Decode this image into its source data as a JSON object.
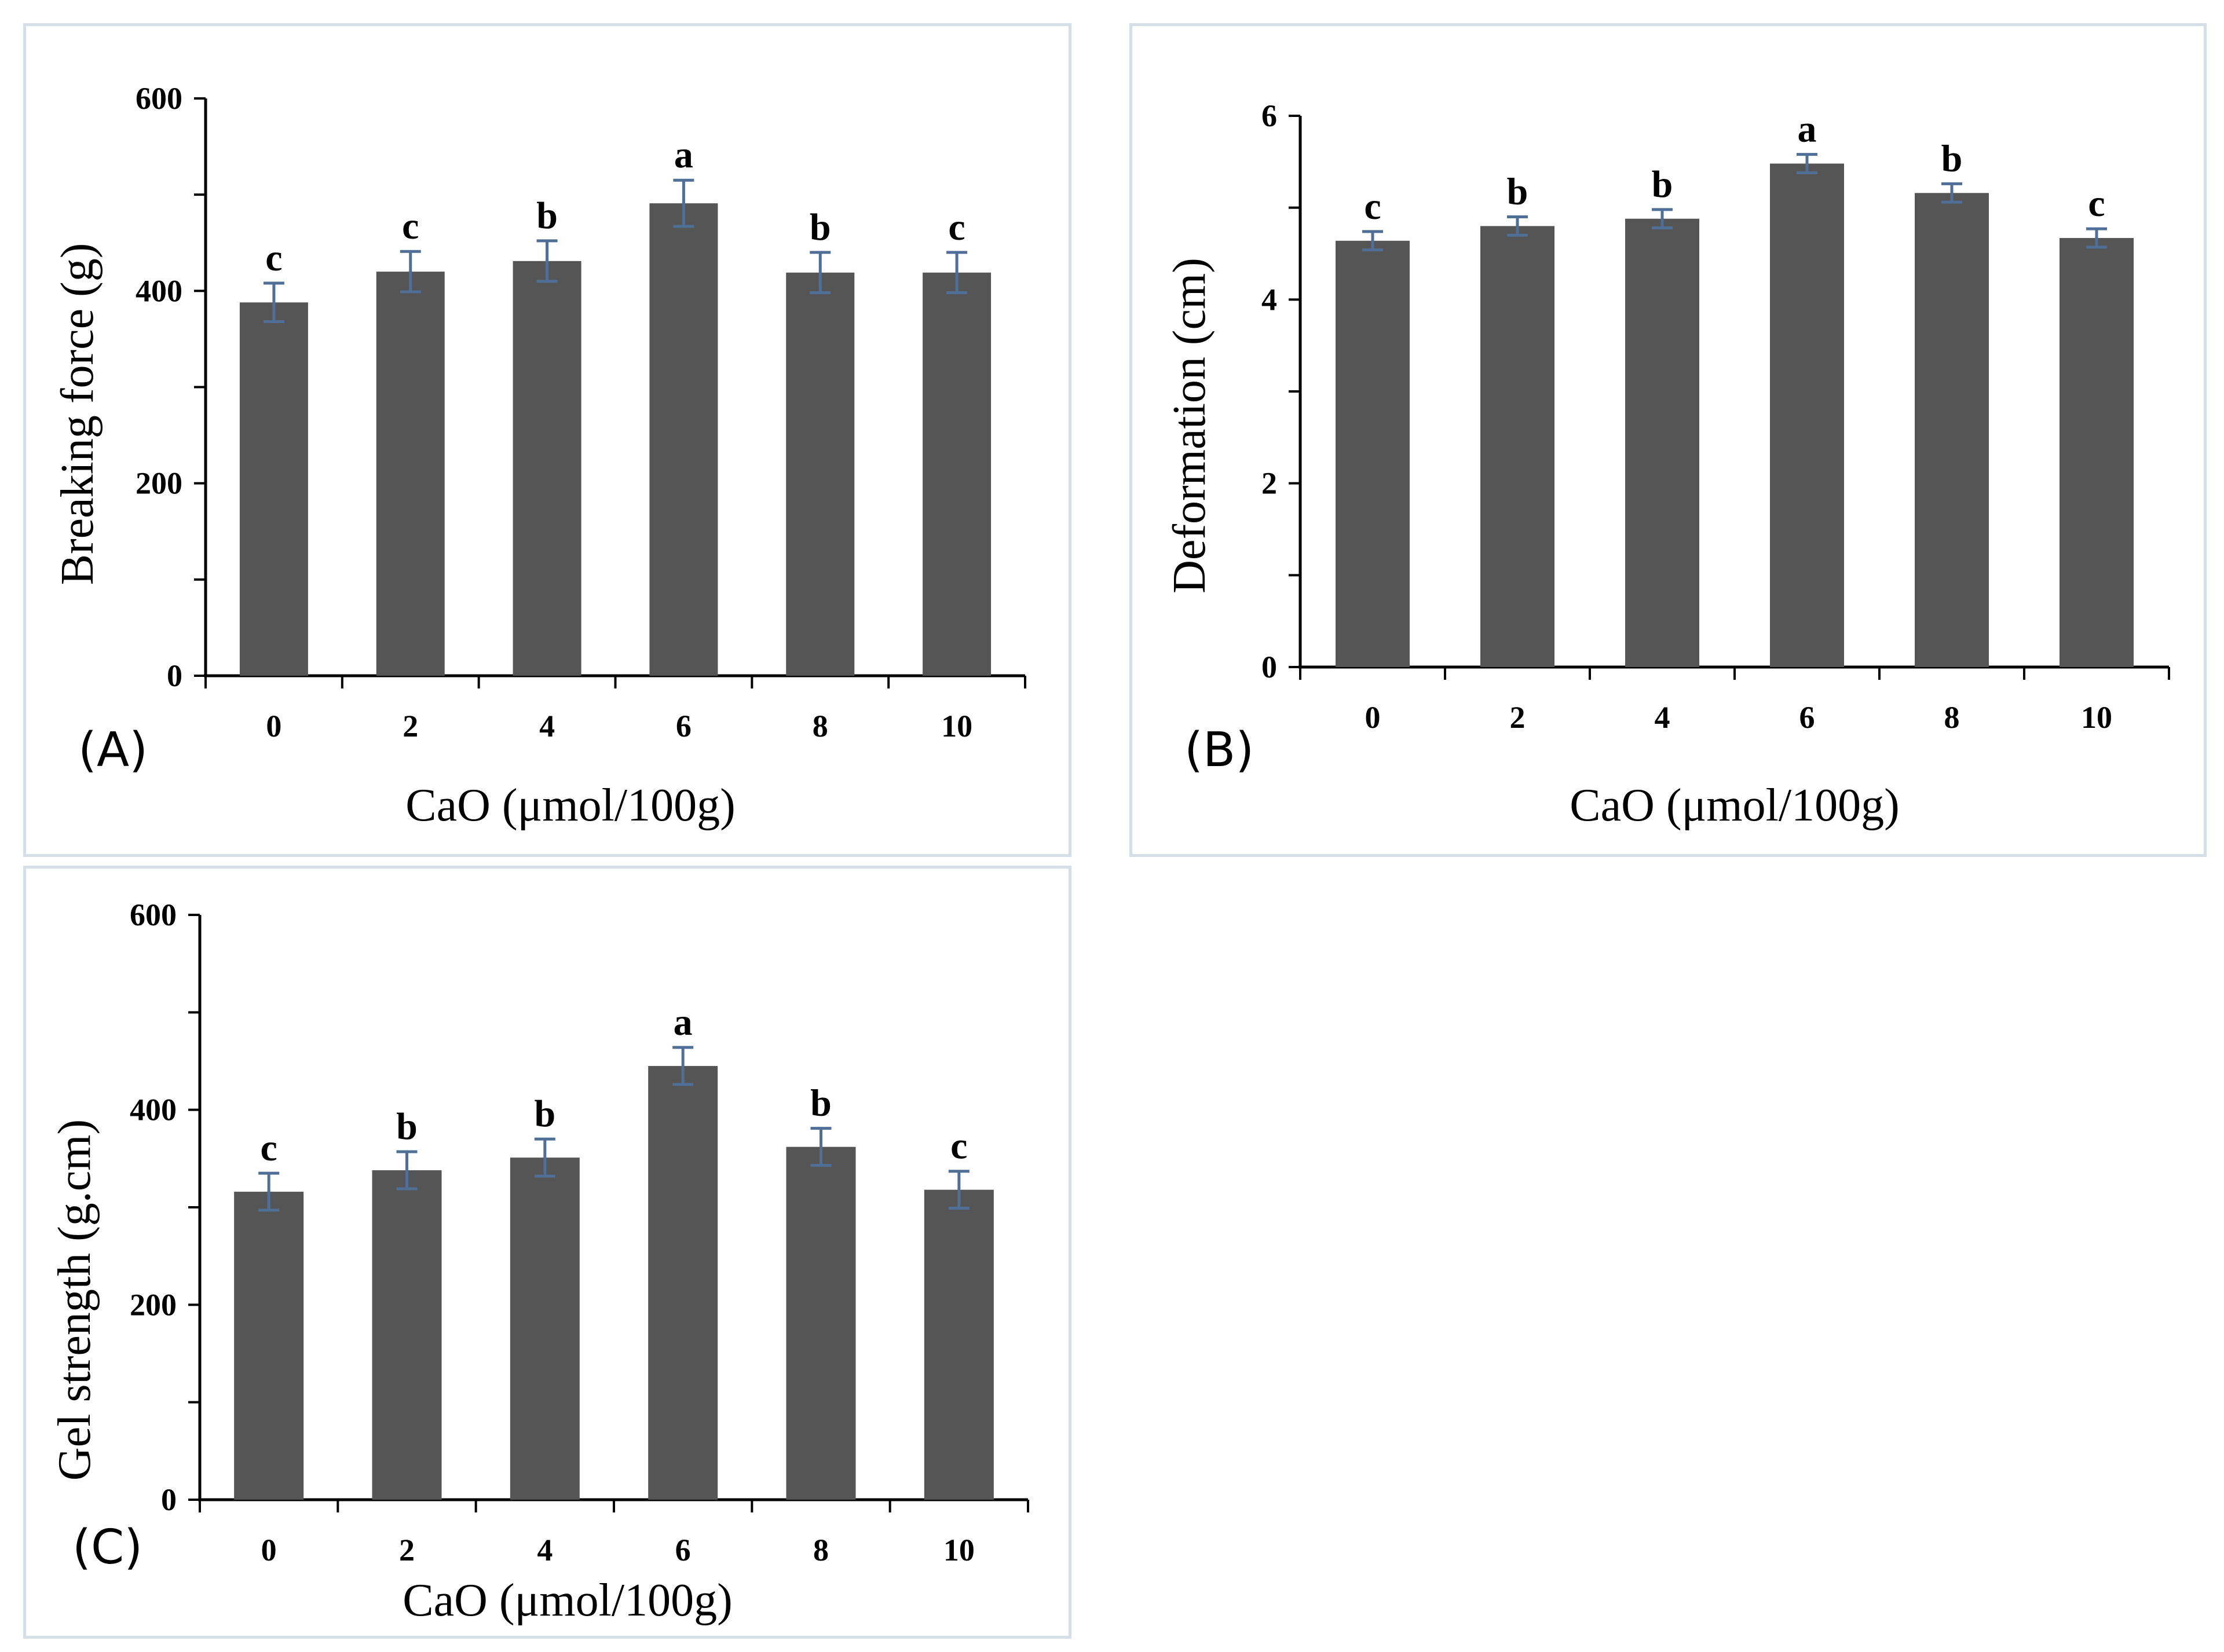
{
  "chart_data": [
    {
      "id": "A",
      "type": "bar",
      "panel_label": "(A)",
      "categories": [
        "0",
        "2",
        "4",
        "6",
        "8",
        "10"
      ],
      "values": [
        388,
        420,
        431,
        491,
        419,
        419
      ],
      "errors": [
        20,
        21,
        21,
        24,
        21,
        21
      ],
      "significance": [
        "c",
        "c",
        "b",
        "a",
        "b",
        "c"
      ],
      "xlabel": "CaO (μmol/100g)",
      "ylabel": "Breaking force (g)",
      "ylim": [
        0,
        600
      ],
      "yticks": [
        "0",
        "200",
        "400",
        "600"
      ],
      "bar_color": "#555555",
      "error_color": "#4f6f96"
    },
    {
      "id": "B",
      "type": "bar",
      "panel_label": "(B)",
      "categories": [
        "0",
        "2",
        "4",
        "6",
        "8",
        "10"
      ],
      "values": [
        4.64,
        4.8,
        4.88,
        5.48,
        5.16,
        4.67
      ],
      "errors": [
        0.1,
        0.1,
        0.1,
        0.1,
        0.1,
        0.1
      ],
      "significance": [
        "c",
        "b",
        "b",
        "a",
        "b",
        "c"
      ],
      "xlabel": "CaO (μmol/100g)",
      "ylabel": "Deformation (cm)",
      "ylim": [
        0,
        6
      ],
      "yticks": [
        "0",
        "2",
        "4",
        "6"
      ],
      "bar_color": "#555555",
      "error_color": "#4f6f96"
    },
    {
      "id": "C",
      "type": "bar",
      "panel_label": "(C)",
      "categories": [
        "0",
        "2",
        "4",
        "6",
        "8",
        "10"
      ],
      "values": [
        316,
        338,
        351,
        445,
        362,
        318
      ],
      "errors": [
        19,
        19,
        19,
        19,
        19,
        19
      ],
      "significance": [
        "c",
        "b",
        "b",
        "a",
        "b",
        "c"
      ],
      "xlabel": "CaO (μmol/100g)",
      "ylabel": "Gel strength (g.cm)",
      "ylim": [
        0,
        600
      ],
      "yticks": [
        "0",
        "200",
        "400",
        "600"
      ],
      "bar_color": "#555555",
      "error_color": "#4f6f96"
    }
  ]
}
